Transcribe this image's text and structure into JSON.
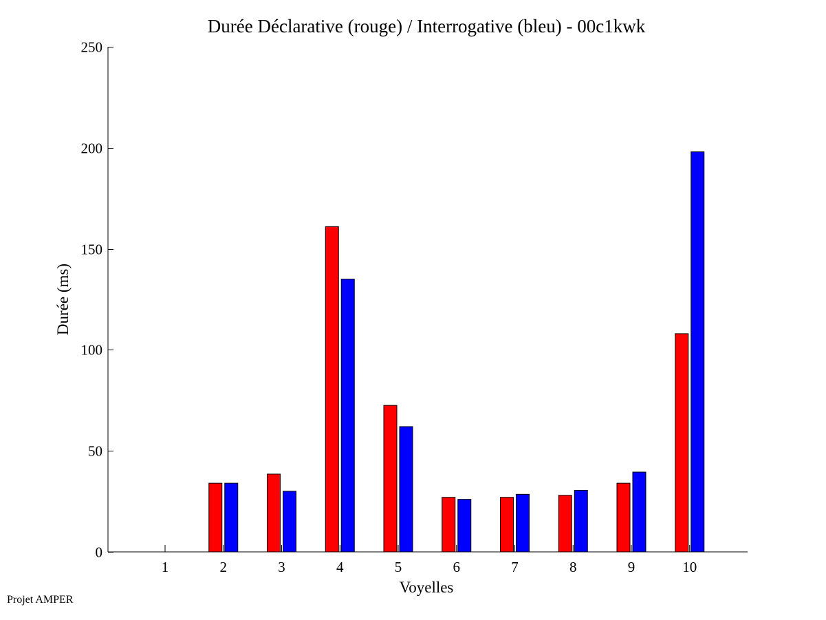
{
  "footer": {
    "credit": "Projet AMPER"
  },
  "colors": {
    "series_1": "#ff0000",
    "series_2": "#0000ff",
    "axis": "#000000",
    "background": "#ffffff"
  },
  "chart_data": {
    "type": "bar",
    "title": "Durée Déclarative (rouge) / Interrogative (bleu) - 00c1kwk",
    "xlabel": "Voyelles",
    "ylabel": "Durée (ms)",
    "categories": [
      "1",
      "2",
      "3",
      "4",
      "5",
      "6",
      "7",
      "8",
      "9",
      "10"
    ],
    "series": [
      {
        "color": "#ff0000",
        "values": [
          0,
          34,
          38.5,
          161,
          72.5,
          27,
          27,
          28,
          34,
          108
        ]
      },
      {
        "color": "#0000ff",
        "values": [
          0,
          34,
          30,
          135,
          62,
          26,
          28.5,
          30.5,
          39.5,
          198
        ]
      }
    ],
    "ylim": [
      0,
      250
    ],
    "yticks": [
      0,
      50,
      100,
      150,
      200,
      250
    ],
    "grid": false,
    "legend": "none"
  }
}
